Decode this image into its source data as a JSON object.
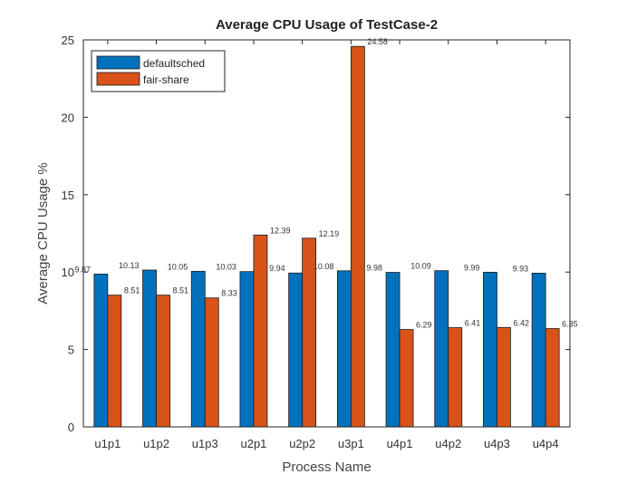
{
  "chart_data": {
    "type": "bar",
    "title": "Average CPU Usage of TestCase-2",
    "xlabel": "Process Name",
    "ylabel": "Average CPU Usage %",
    "categories": [
      "u1p1",
      "u1p2",
      "u1p3",
      "u2p1",
      "u2p2",
      "u3p1",
      "u4p1",
      "u4p2",
      "u4p3",
      "u4p4"
    ],
    "ylim": [
      0,
      25
    ],
    "yticks": [
      0,
      5,
      10,
      15,
      20,
      25
    ],
    "grid": false,
    "legend_position": "top-left",
    "series": [
      {
        "name": "defaultsched",
        "color": "#0072BD",
        "values": [
          9.87,
          10.13,
          10.05,
          10.03,
          9.94,
          10.08,
          9.98,
          10.09,
          9.99,
          9.93
        ],
        "labels": [
          "9.87",
          "10.13",
          "10.05",
          "10.03",
          "9.94",
          "10.08",
          "9.98",
          "10.09",
          "9.99",
          "9.93"
        ]
      },
      {
        "name": "fair-share",
        "color": "#D95319",
        "values": [
          8.51,
          8.51,
          8.33,
          12.39,
          12.19,
          24.58,
          6.29,
          6.41,
          6.42,
          6.35
        ],
        "labels": [
          "8.51",
          "8.51",
          "8.33",
          "12.39",
          "12.19",
          "24.58",
          "6.29",
          "6.41",
          "6.42",
          "6.35"
        ]
      }
    ]
  }
}
